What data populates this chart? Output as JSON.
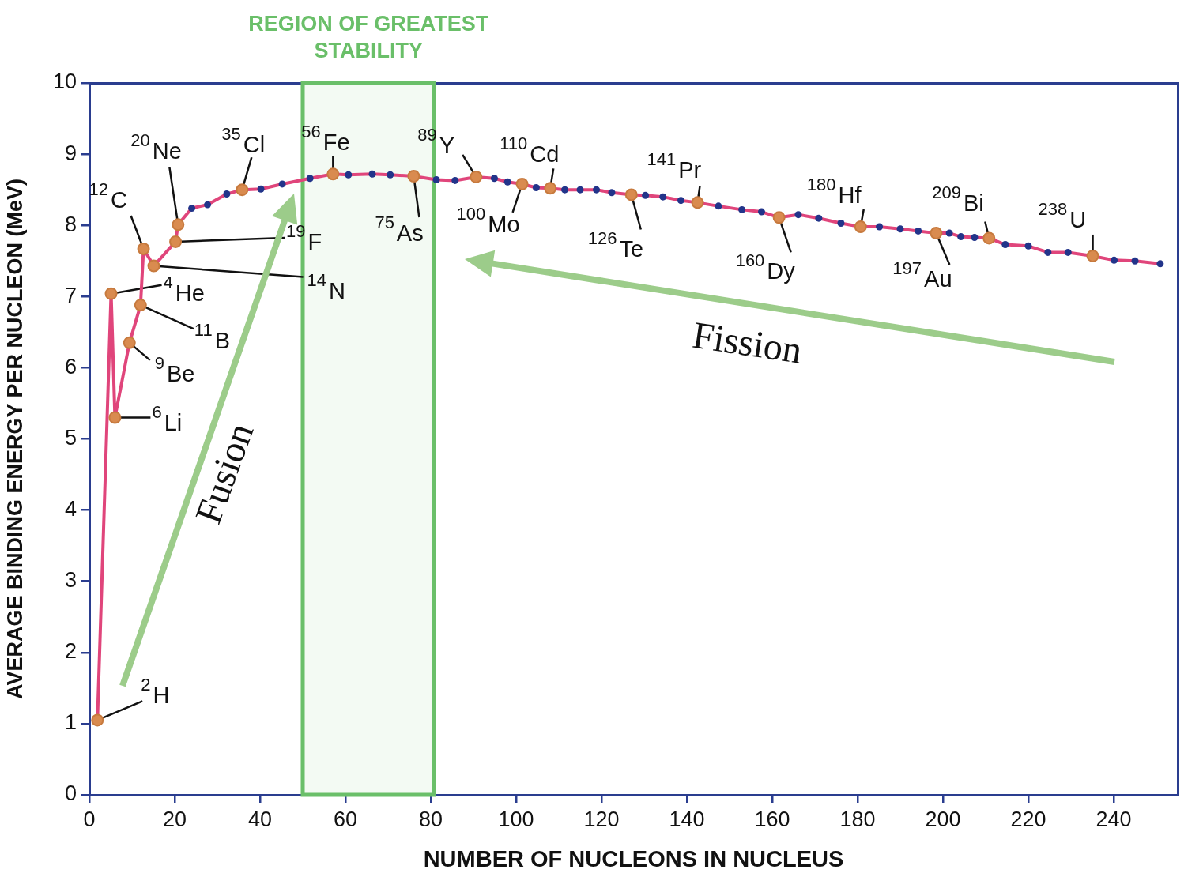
{
  "chart_data": {
    "type": "line",
    "xlabel": "NUMBER OF NUCLEONS IN NUCLEUS",
    "ylabel": "AVERAGE BINDING ENERGY PER NUCLEON (MeV)",
    "xlim": [
      0,
      255
    ],
    "ylim": [
      0,
      10
    ],
    "xticks": [
      0,
      20,
      40,
      60,
      80,
      100,
      120,
      140,
      160,
      180,
      200,
      220,
      240
    ],
    "yticks": [
      0,
      1,
      2,
      3,
      4,
      5,
      6,
      7,
      8,
      9,
      10
    ],
    "marker": "circle",
    "line_style": "solid",
    "series": [
      {
        "type": "line",
        "color": "#e0457b",
        "x": [
          1.9,
          5.1,
          6.0,
          9.4,
          12.0,
          12.7,
          15.1,
          20.2,
          20.8,
          24.0,
          27.7,
          32.2,
          35.8,
          40.2,
          45.2,
          51.7,
          57.1,
          60.7,
          66.3,
          70.5,
          76.0,
          81.3,
          85.7,
          90.6,
          94.9,
          98.0,
          101.4,
          104.7,
          108.0,
          111.4,
          115.0,
          118.8,
          122.4,
          127.0,
          130.3,
          134.4,
          138.6,
          142.5,
          147.4,
          152.9,
          157.5,
          161.6,
          166.1,
          170.9,
          176.1,
          180.7,
          185.1,
          190.0,
          194.2,
          198.4,
          201.5,
          204.2,
          207.4,
          210.8,
          214.6,
          220.0,
          224.6,
          229.3,
          235.1,
          240.1,
          245.0,
          250.9
        ],
        "values": [
          1.05,
          7.04,
          5.3,
          6.35,
          6.88,
          7.67,
          7.43,
          7.77,
          8.01,
          8.24,
          8.29,
          8.44,
          8.5,
          8.51,
          8.58,
          8.66,
          8.72,
          8.71,
          8.72,
          8.71,
          8.69,
          8.64,
          8.63,
          8.68,
          8.66,
          8.61,
          8.58,
          8.53,
          8.52,
          8.5,
          8.5,
          8.5,
          8.46,
          8.43,
          8.42,
          8.4,
          8.35,
          8.32,
          8.27,
          8.22,
          8.19,
          8.11,
          8.15,
          8.1,
          8.03,
          7.98,
          7.98,
          7.95,
          7.92,
          7.89,
          7.89,
          7.84,
          7.83,
          7.82,
          7.73,
          7.71,
          7.62,
          7.62,
          7.57,
          7.51,
          7.5,
          7.46
        ],
        "colors": [
          "#d98b4f",
          "#d98b4f",
          "#d98b4f",
          "#d98b4f",
          "#d98b4f",
          "#d98b4f",
          "#d98b4f",
          "#d98b4f",
          "#d98b4f",
          "#22348a",
          "#22348a",
          "#22348a",
          "#d98b4f",
          "#22348a",
          "#22348a",
          "#22348a",
          "#d98b4f",
          "#22348a",
          "#22348a",
          "#22348a",
          "#d98b4f",
          "#22348a",
          "#22348a",
          "#d98b4f",
          "#22348a",
          "#22348a",
          "#d98b4f",
          "#22348a",
          "#d98b4f",
          "#22348a",
          "#22348a",
          "#22348a",
          "#22348a",
          "#d98b4f",
          "#22348a",
          "#22348a",
          "#22348a",
          "#d98b4f",
          "#22348a",
          "#22348a",
          "#22348a",
          "#d98b4f",
          "#22348a",
          "#22348a",
          "#22348a",
          "#d98b4f",
          "#22348a",
          "#22348a",
          "#22348a",
          "#d98b4f",
          "#22348a",
          "#22348a",
          "#22348a",
          "#d98b4f",
          "#22348a",
          "#22348a",
          "#22348a",
          "#22348a",
          "#d98b4f",
          "#22348a",
          "#22348a",
          "#22348a"
        ]
      }
    ],
    "bands": [
      {
        "axis": "x",
        "from": 50.0,
        "to": 80.8,
        "label": "REGION OF GREATEST STABILITY",
        "color": "#6abf69"
      }
    ],
    "annotations": [
      {
        "text": "$^{2}$H",
        "x": 1.9,
        "y": 1.05
      },
      {
        "text": "$^{4}$He",
        "x": 5.1,
        "y": 7.04
      },
      {
        "text": "$^{6}$Li",
        "x": 6.0,
        "y": 5.3
      },
      {
        "text": "$^{9}$Be",
        "x": 9.4,
        "y": 6.35
      },
      {
        "text": "$^{11}$B",
        "x": 12.0,
        "y": 6.88
      },
      {
        "text": "$^{12}$C",
        "x": 12.7,
        "y": 7.67
      },
      {
        "text": "$^{14}$N",
        "x": 15.1,
        "y": 7.43
      },
      {
        "text": "$^{19}$F",
        "x": 20.2,
        "y": 7.77
      },
      {
        "text": "$^{20}$Ne",
        "x": 20.8,
        "y": 8.01
      },
      {
        "text": "$^{35}$Cl",
        "x": 35.8,
        "y": 8.5
      },
      {
        "text": "$^{56}$Fe",
        "x": 57.1,
        "y": 8.72
      },
      {
        "text": "$^{75}$As",
        "x": 76.0,
        "y": 8.69
      },
      {
        "text": "$^{89}$Y",
        "x": 90.6,
        "y": 8.68
      },
      {
        "text": "$^{100}$Mo",
        "x": 101.4,
        "y": 8.58
      },
      {
        "text": "$^{110}$Cd",
        "x": 108.0,
        "y": 8.52
      },
      {
        "text": "$^{126}$Te",
        "x": 127.0,
        "y": 8.43
      },
      {
        "text": "$^{141}$Pr",
        "x": 142.5,
        "y": 8.32
      },
      {
        "text": "$^{160}$Dy",
        "x": 161.6,
        "y": 8.11
      },
      {
        "text": "$^{180}$Hf",
        "x": 180.7,
        "y": 7.98
      },
      {
        "text": "$^{197}$Au",
        "x": 198.4,
        "y": 7.89
      },
      {
        "text": "$^{209}$Bi",
        "x": 210.8,
        "y": 7.82
      },
      {
        "text": "$^{238}$U",
        "x": 235.1,
        "y": 7.57
      },
      "Fusion",
      "Fission"
    ]
  }
}
